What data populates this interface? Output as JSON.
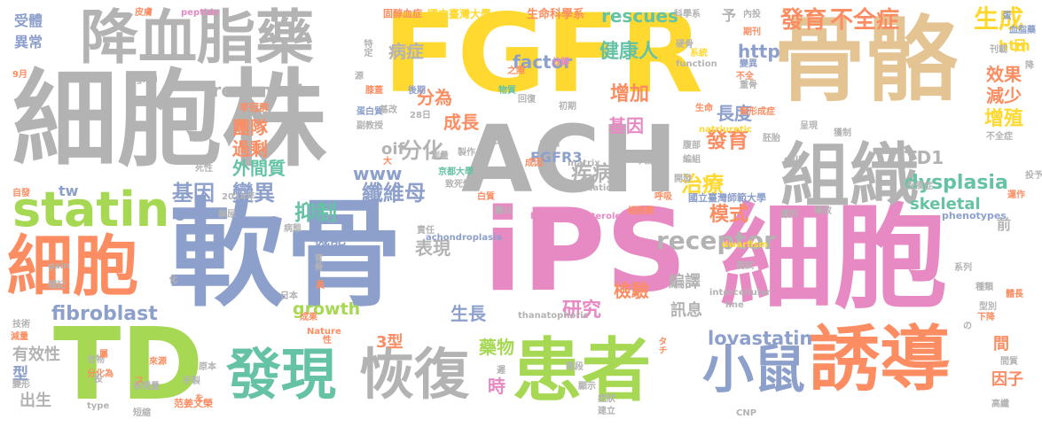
{
  "colors": {
    "background": "#ffffff",
    "gray": "#b3b3b3",
    "yellow": "#ffd92f",
    "pink": "#e78ac3",
    "green": "#a6d854",
    "orange": "#fc8d62",
    "blue": "#8da0cb",
    "teal": "#66c2a5",
    "tan": "#e5c494"
  },
  "words": [
    {
      "text": "軟骨",
      "color": "#8da0cb"
    },
    {
      "text": "iPS",
      "color": "#e78ac3"
    },
    {
      "text": "細胞株",
      "color": "#b3b3b3"
    },
    {
      "text": "細胞",
      "color": "#e78ac3"
    },
    {
      "text": "FGFR",
      "color": "#ffd92f"
    },
    {
      "text": "骨骼",
      "color": "#e5c494"
    },
    {
      "text": "ACH",
      "color": "#b3b3b3"
    },
    {
      "text": "降血脂藥",
      "color": "#b3b3b3"
    },
    {
      "text": "TD",
      "color": "#a6d854"
    },
    {
      "text": "患者",
      "color": "#a6d854"
    },
    {
      "text": "細胞",
      "color": "#fc8d62"
    },
    {
      "text": "組織",
      "color": "#b3b3b3"
    },
    {
      "text": "誘導",
      "color": "#fc8d62"
    },
    {
      "text": "發現",
      "color": "#66c2a5"
    },
    {
      "text": "恢復",
      "color": "#b3b3b3"
    },
    {
      "text": "statin",
      "color": "#a6d854"
    },
    {
      "text": "小鼠",
      "color": "#8da0cb"
    },
    {
      "text": "發育",
      "color": "#fc8d62"
    },
    {
      "text": "不全症",
      "color": "#fc8d62"
    },
    {
      "text": "生成",
      "color": "#ffd92f"
    },
    {
      "text": "lovastatin",
      "color": "#8da0cb"
    },
    {
      "text": "fibroblast",
      "color": "#8da0cb"
    },
    {
      "text": "dysplasia",
      "color": "#66c2a5"
    },
    {
      "text": "receptor",
      "color": "#b3b3b3"
    },
    {
      "text": "factor",
      "color": "#8da0cb"
    },
    {
      "text": "rescues",
      "color": "#66c2a5"
    },
    {
      "text": "基因",
      "color": "#8da0cb"
    },
    {
      "text": "變異",
      "color": "#8da0cb"
    },
    {
      "text": "纖維母",
      "color": "#8da0cb"
    },
    {
      "text": "分化",
      "color": "#b3b3b3"
    },
    {
      "text": "抑制",
      "color": "#66c2a5"
    },
    {
      "text": "治療",
      "color": "#ffd92f"
    },
    {
      "text": "發育",
      "color": "#fc8d62"
    },
    {
      "text": "模式",
      "color": "#fc8d62"
    },
    {
      "text": "增加",
      "color": "#fc8d62"
    },
    {
      "text": "健康人",
      "color": "#66c2a5"
    },
    {
      "text": "疾病",
      "color": "#b3b3b3"
    },
    {
      "text": "成長",
      "color": "#fc8d62"
    },
    {
      "text": "基因",
      "color": "#e78ac3"
    },
    {
      "text": "長度",
      "color": "#8da0cb"
    },
    {
      "text": "研究",
      "color": "#e78ac3"
    },
    {
      "text": "檢驗",
      "color": "#fc8d62"
    },
    {
      "text": "藥物",
      "color": "#a6d854"
    },
    {
      "text": "生長",
      "color": "#8da0cb"
    },
    {
      "text": "機能",
      "color": "#8da0cb"
    },
    {
      "text": "growth",
      "color": "#a6d854"
    },
    {
      "text": "skeletal",
      "color": "#66c2a5"
    },
    {
      "text": "treatment",
      "color": "#b3b3b3"
    },
    {
      "text": "FGFR3",
      "color": "#8da0cb"
    },
    {
      "text": "TD1",
      "color": "#b3b3b3"
    },
    {
      "text": "http",
      "color": "#8da0cb"
    },
    {
      "text": "www",
      "color": "#8da0cb"
    },
    {
      "text": "htm",
      "color": "#ffd92f"
    },
    {
      "text": "oif",
      "color": "#b3b3b3"
    },
    {
      "text": "tw",
      "color": "#8da0cb"
    },
    {
      "text": "效果",
      "color": "#fc8d62"
    },
    {
      "text": "減少",
      "color": "#fc8d62"
    },
    {
      "text": "增殖",
      "color": "#ffd92f"
    },
    {
      "text": "團隊",
      "color": "#fc8d62"
    },
    {
      "text": "過剩",
      "color": "#fc8d62"
    },
    {
      "text": "外間質",
      "color": "#66c2a5"
    },
    {
      "text": "病症",
      "color": "#b3b3b3"
    },
    {
      "text": "分為",
      "color": "#fc8d62"
    },
    {
      "text": "表現",
      "color": "#b3b3b3"
    },
    {
      "text": "編譯",
      "color": "#b3b3b3"
    },
    {
      "text": "訊息",
      "color": "#b3b3b3"
    },
    {
      "text": "有效性",
      "color": "#b3b3b3"
    },
    {
      "text": "出生",
      "color": "#b3b3b3"
    },
    {
      "text": "型",
      "color": "#8da0cb"
    },
    {
      "text": "異常",
      "color": "#8da0cb"
    },
    {
      "text": "受體",
      "color": "#8da0cb"
    },
    {
      "text": "3型",
      "color": "#fc8d62"
    },
    {
      "text": "時",
      "color": "#e78ac3"
    },
    {
      "text": "間",
      "color": "#fc8d62"
    },
    {
      "text": "因子",
      "color": "#fc8d62"
    },
    {
      "text": "前",
      "color": "#b3b3b3"
    },
    {
      "text": "日",
      "color": "#ffd92f"
    },
    {
      "text": "予",
      "color": "#b3b3b3"
    },
    {
      "text": "C",
      "color": "#8da0cb"
    },
    {
      "text": "生命科學系",
      "color": "#fc8d62"
    },
    {
      "text": "國立臺灣大學",
      "color": "#ffd92f"
    },
    {
      "text": "固醇血症",
      "color": "#fc8d62"
    },
    {
      "text": "皮膚",
      "color": "#fc8d62"
    },
    {
      "text": "peptide",
      "color": "#e78ac3"
    },
    {
      "text": "科學系",
      "color": "#b3b3b3"
    },
    {
      "text": "內投",
      "color": "#b3b3b3"
    },
    {
      "text": "蛋",
      "color": "#8da0cb"
    },
    {
      "text": "血脂藥",
      "color": "#8da0cb"
    },
    {
      "text": "硬骨",
      "color": "#b3b3b3"
    },
    {
      "text": "期刊",
      "color": "#fc8d62"
    },
    {
      "text": "系統",
      "color": "#ffd92f"
    },
    {
      "text": "分解",
      "color": "#e78ac3"
    },
    {
      "text": "function",
      "color": "#b3b3b3"
    },
    {
      "text": "變異",
      "color": "#8da0cb"
    },
    {
      "text": "重骨",
      "color": "#b3b3b3"
    },
    {
      "text": "特定",
      "color": "#b3b3b3"
    },
    {
      "text": "signal",
      "color": "#b3b3b3"
    },
    {
      "text": "9月",
      "color": "#fc8d62"
    },
    {
      "text": "李冠群",
      "color": "#fc8d62"
    },
    {
      "text": "蛋白質",
      "color": "#8da0cb"
    },
    {
      "text": "副教授",
      "color": "#b3b3b3"
    },
    {
      "text": "後期",
      "color": "#8da0cb"
    },
    {
      "text": "物質",
      "color": "#66c2a5"
    },
    {
      "text": "回復",
      "color": "#b3b3b3"
    },
    {
      "text": "之際",
      "color": "#fc8d62"
    },
    {
      "text": "初期",
      "color": "#b3b3b3"
    },
    {
      "text": "生命",
      "color": "#fc8d62"
    },
    {
      "text": "無形成症",
      "color": "#fc8d62"
    },
    {
      "text": "natriuretic",
      "color": "#ffd92f"
    },
    {
      "text": "胚胎",
      "color": "#b3b3b3"
    },
    {
      "text": "呈現",
      "color": "#b3b3b3"
    },
    {
      "text": "獲制",
      "color": "#b3b3b3"
    },
    {
      "text": "28日",
      "color": "#b3b3b3"
    },
    {
      "text": "京都大學",
      "color": "#66c2a5"
    },
    {
      "text": "致死性",
      "color": "#b3b3b3"
    },
    {
      "text": "matrix",
      "color": "#b3b3b3"
    },
    {
      "text": "mutations",
      "color": "#b3b3b3"
    },
    {
      "text": "人類",
      "color": "#b3b3b3"
    },
    {
      "text": "國立臺灣師範大學",
      "color": "#8da0cb"
    },
    {
      "text": "保備症",
      "color": "#b3b3b3"
    },
    {
      "text": "hypercholesterolemia",
      "color": "#e78ac3"
    },
    {
      "text": "細胞數",
      "color": "#fc8d62"
    },
    {
      "text": "導致",
      "color": "#b3b3b3"
    },
    {
      "text": "phenotypes",
      "color": "#8da0cb"
    },
    {
      "text": "achondroplasia",
      "color": "#8da0cb"
    },
    {
      "text": "dwarfism",
      "color": "#ffd92f"
    },
    {
      "text": "intercellular",
      "color": "#b3b3b3"
    },
    {
      "text": "thanatophoric",
      "color": "#b3b3b3"
    },
    {
      "text": "Nature",
      "color": "#fc8d62"
    },
    {
      "text": "成果",
      "color": "#fc8d62"
    },
    {
      "text": "日本",
      "color": "#b3b3b3"
    },
    {
      "text": "gain",
      "color": "#b3b3b3"
    },
    {
      "text": "標記",
      "color": "#b3b3b3"
    },
    {
      "text": "技術",
      "color": "#b3b3b3"
    },
    {
      "text": "減量",
      "color": "#fc8d62"
    },
    {
      "text": "變形",
      "color": "#b3b3b3"
    },
    {
      "text": "type",
      "color": "#b3b3b3"
    },
    {
      "text": "短縮",
      "color": "#b3b3b3"
    },
    {
      "text": "范姜文榮",
      "color": "#fc8d62"
    },
    {
      "text": "表現量",
      "color": "#b3b3b3"
    },
    {
      "text": "合物",
      "color": "#b3b3b3"
    },
    {
      "text": "分化為",
      "color": "#fc8d62"
    },
    {
      "text": "來源",
      "color": "#fc8d62"
    },
    {
      "text": "手製",
      "color": "#b3b3b3"
    },
    {
      "text": "原本",
      "color": "#b3b3b3"
    },
    {
      "text": "階段",
      "color": "#b3b3b3"
    },
    {
      "text": "顯示",
      "color": "#b3b3b3"
    },
    {
      "text": "症狀",
      "color": "#b3b3b3"
    },
    {
      "text": "建立",
      "color": "#b3b3b3"
    },
    {
      "text": "CNP",
      "color": "#b3b3b3"
    },
    {
      "text": "高纖",
      "color": "#b3b3b3"
    },
    {
      "text": "體長",
      "color": "#fc8d62"
    },
    {
      "text": "間質",
      "color": "#b3b3b3"
    },
    {
      "text": "系列",
      "color": "#b3b3b3"
    },
    {
      "text": "種類",
      "color": "#b3b3b3"
    },
    {
      "text": "型別",
      "color": "#b3b3b3"
    },
    {
      "text": "下降",
      "color": "#fc8d62"
    },
    {
      "text": "line",
      "color": "#b3b3b3"
    },
    {
      "text": "測試",
      "color": "#b3b3b3"
    },
    {
      "text": "cell",
      "color": "#b3b3b3"
    },
    {
      "text": "投予",
      "color": "#b3b3b3"
    },
    {
      "text": "不全症",
      "color": "#b3b3b3"
    },
    {
      "text": "2014年",
      "color": "#b3b3b3"
    },
    {
      "text": "自發",
      "color": "#fc8d62"
    },
    {
      "text": "鎖尿",
      "color": "#b3b3b3"
    },
    {
      "text": "病態",
      "color": "#b3b3b3"
    },
    {
      "text": "死性",
      "color": "#b3b3b3"
    },
    {
      "text": "胃骨",
      "color": "#b3b3b3"
    },
    {
      "text": "膝蓋",
      "color": "#fc8d62"
    },
    {
      "text": "源",
      "color": "#b3b3b3"
    },
    {
      "text": "基改",
      "color": "#b3b3b3"
    },
    {
      "text": "責任",
      "color": "#b3b3b3"
    },
    {
      "text": "製作",
      "color": "#b3b3b3"
    },
    {
      "text": "25日",
      "color": "#b3b3b3"
    },
    {
      "text": "腹部",
      "color": "#b3b3b3"
    },
    {
      "text": "編組",
      "color": "#b3b3b3"
    },
    {
      "text": "開發",
      "color": "#b3b3b3"
    },
    {
      "text": "白質",
      "color": "#fc8d62"
    },
    {
      "text": "難以",
      "color": "#b3b3b3"
    },
    {
      "text": "呼吸",
      "color": "#fc8d62"
    },
    {
      "text": "標的",
      "color": "#b3b3b3"
    },
    {
      "text": "運作",
      "color": "#fc8d62"
    },
    {
      "text": "刊載",
      "color": "#b3b3b3"
    },
    {
      "text": "降",
      "color": "#b3b3b3"
    },
    {
      "text": "不全",
      "color": "#fc8d62"
    },
    {
      "text": "ンが",
      "color": "#b3b3b3"
    },
    {
      "text": "測量",
      "color": "#b3b3b3"
    },
    {
      "text": "成因",
      "color": "#fc8d62"
    },
    {
      "text": "タチ",
      "color": "#fc8d62"
    },
    {
      "text": "ス",
      "color": "#fc8d62"
    },
    {
      "text": "を",
      "color": "#fc8d62"
    },
    {
      "text": "の",
      "color": "#b3b3b3"
    },
    {
      "text": "化",
      "color": "#b3b3b3"
    },
    {
      "text": "員",
      "color": "#fc8d62"
    },
    {
      "text": "性",
      "color": "#fc8d62"
    },
    {
      "text": "投",
      "color": "#b3b3b3"
    },
    {
      "text": "屬",
      "color": "#fc8d62"
    },
    {
      "text": "遲",
      "color": "#b3b3b3"
    },
    {
      "text": "大",
      "color": "#fc8d62"
    }
  ]
}
